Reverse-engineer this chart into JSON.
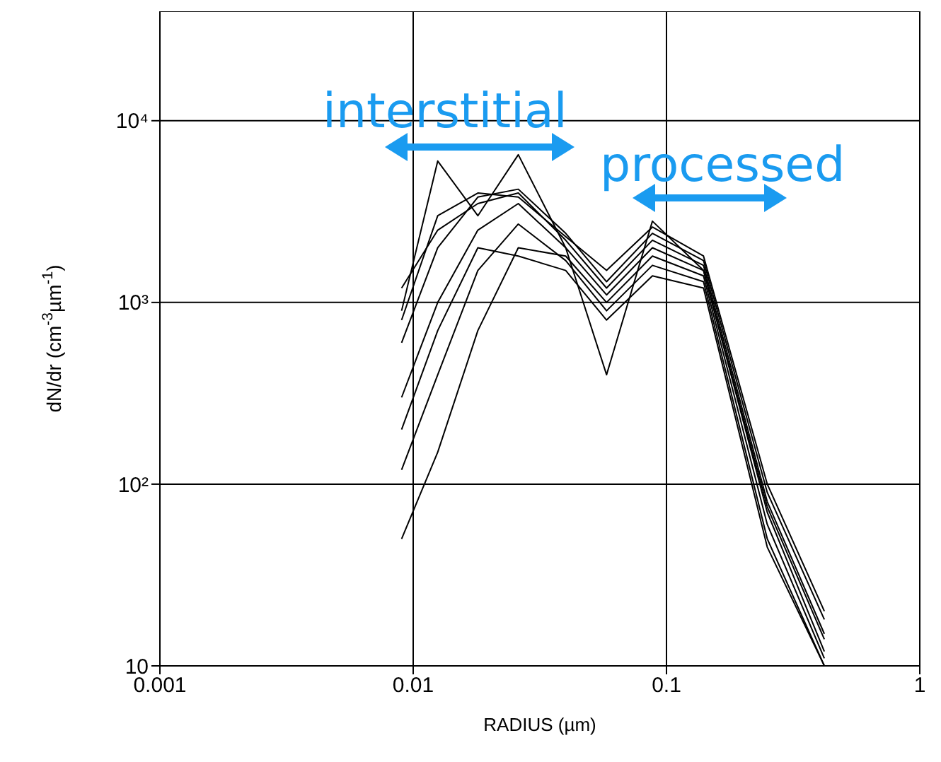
{
  "chart_data": {
    "type": "line",
    "xlabel": "RADIUS (µm)",
    "ylabel": "dN/dr (cm$^{-3}$µm$^{-1}$)",
    "log": "xy",
    "grid": true,
    "marker": "none",
    "line_style": "solid",
    "xlim": [
      0.001,
      1
    ],
    "xticks": [
      0.001,
      0.01,
      0.1,
      1
    ],
    "ylim": [
      10,
      40000
    ],
    "yticks": [
      10,
      {
        "value": 100,
        "label": "10²"
      },
      {
        "value": 1000,
        "label": "10³"
      },
      {
        "value": 10000,
        "label": "10⁴"
      }
    ],
    "x": [
      0.009,
      0.0125,
      0.018,
      0.026,
      0.04,
      0.058,
      0.088,
      0.14,
      0.25,
      0.42
    ],
    "series": [
      {
        "color": "#000000",
        "values": [
          1200,
          2500,
          3500,
          4000,
          2200,
          1200,
          2200,
          1600,
          80,
          15
        ]
      },
      {
        "color": "#000000",
        "values": [
          900,
          6000,
          3000,
          6500,
          2000,
          400,
          2800,
          1500,
          70,
          12
        ]
      },
      {
        "color": "#000000",
        "values": [
          50,
          150,
          700,
          2000,
          1800,
          1000,
          1800,
          1400,
          60,
          11
        ]
      },
      {
        "color": "#000000",
        "values": [
          300,
          1000,
          2500,
          3500,
          2000,
          1100,
          2000,
          1500,
          75,
          14
        ]
      },
      {
        "color": "#000000",
        "values": [
          120,
          400,
          1500,
          2700,
          1700,
          900,
          1600,
          1300,
          50,
          10
        ]
      },
      {
        "color": "#000000",
        "values": [
          600,
          2000,
          3800,
          4200,
          2400,
          1300,
          2400,
          1700,
          90,
          18
        ]
      },
      {
        "color": "#000000",
        "values": [
          200,
          700,
          2000,
          1800,
          1500,
          800,
          1400,
          1200,
          45,
          10
        ]
      },
      {
        "color": "#000000",
        "values": [
          800,
          3000,
          4000,
          3800,
          2300,
          1500,
          2600,
          1800,
          100,
          20
        ]
      }
    ],
    "annotations": [
      "interstitial",
      "processed"
    ]
  }
}
